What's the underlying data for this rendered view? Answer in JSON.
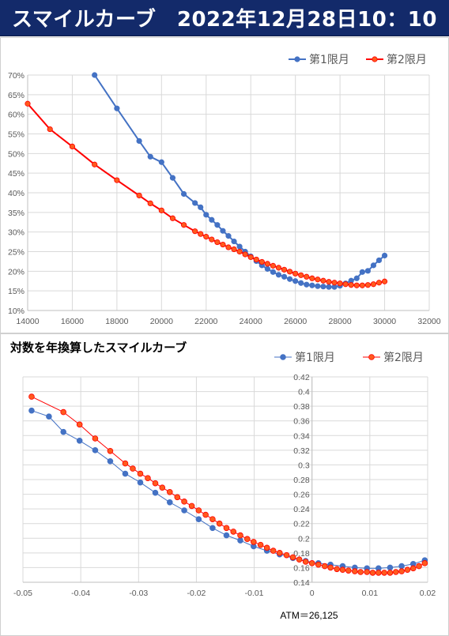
{
  "page": {
    "title": "スマイルカーブ　2022年12月28日10：10"
  },
  "colors": {
    "title_bg": "#132a6a",
    "series1": "#4472c4",
    "series2": "#ff0000",
    "series2_fill": "#ff5a1e",
    "grid": "#d9d9d9"
  },
  "chart_data": [
    {
      "type": "line",
      "title": "",
      "xlim": [
        14000,
        32000
      ],
      "ylim": [
        10,
        70
      ],
      "x_ticks": [
        14000,
        16000,
        18000,
        20000,
        22000,
        24000,
        26000,
        28000,
        30000,
        32000
      ],
      "x_tick_labels": [
        "14000",
        "16000",
        "18000",
        "20000",
        "22000",
        "24000",
        "26000",
        "28000",
        "30000",
        "32000"
      ],
      "y_ticks": [
        10,
        15,
        20,
        25,
        30,
        35,
        40,
        45,
        50,
        55,
        60,
        65,
        70
      ],
      "y_tick_labels": [
        "10%",
        "15%",
        "20%",
        "25%",
        "30%",
        "35%",
        "40%",
        "45%",
        "50%",
        "55%",
        "60%",
        "65%",
        "70%"
      ],
      "legend_position": "top-right",
      "grid": true,
      "series": [
        {
          "name": "第1限月",
          "x": [
            17000,
            18000,
            19000,
            19500,
            20000,
            20500,
            21000,
            21500,
            21750,
            22000,
            22250,
            22500,
            22750,
            23000,
            23250,
            23500,
            23750,
            24000,
            24250,
            24500,
            24750,
            25000,
            25250,
            25500,
            25750,
            26000,
            26250,
            26500,
            26750,
            27000,
            27250,
            27500,
            27750,
            28000,
            28250,
            28500,
            28750,
            29000,
            29250,
            29500,
            29750,
            30000
          ],
          "y": [
            70.0,
            61.5,
            53.2,
            49.2,
            47.8,
            43.8,
            39.7,
            37.4,
            36.3,
            34.4,
            33.1,
            31.8,
            30.3,
            29.0,
            27.6,
            26.3,
            25.0,
            23.8,
            22.6,
            21.5,
            20.6,
            19.8,
            19.1,
            18.6,
            18.0,
            17.5,
            17.0,
            16.6,
            16.4,
            16.2,
            16.1,
            16.0,
            16.0,
            16.3,
            16.9,
            17.6,
            18.2,
            19.8,
            20.1,
            21.5,
            22.8,
            24.0
          ]
        },
        {
          "name": "第2限月",
          "x": [
            14000,
            15000,
            16000,
            17000,
            18000,
            19000,
            19500,
            20000,
            20500,
            21000,
            21500,
            21750,
            22000,
            22250,
            22500,
            22750,
            23000,
            23250,
            23500,
            23750,
            24000,
            24250,
            24500,
            24750,
            25000,
            25250,
            25500,
            25750,
            26000,
            26250,
            26500,
            26750,
            27000,
            27250,
            27500,
            27750,
            28000,
            28250,
            28500,
            28750,
            29000,
            29250,
            29500,
            29750,
            30000
          ],
          "y": [
            62.7,
            56.2,
            51.8,
            47.2,
            43.2,
            39.3,
            37.3,
            35.5,
            33.5,
            31.8,
            30.2,
            29.5,
            28.8,
            28.1,
            27.4,
            26.8,
            26.1,
            25.6,
            25.0,
            24.3,
            23.6,
            23.0,
            22.4,
            21.9,
            21.4,
            20.9,
            20.4,
            19.9,
            19.4,
            19.0,
            18.6,
            18.2,
            17.9,
            17.6,
            17.3,
            17.1,
            16.9,
            16.7,
            16.5,
            16.4,
            16.4,
            16.5,
            16.7,
            17.1,
            17.4
          ]
        }
      ]
    },
    {
      "type": "line",
      "title": "対数を年換算したスマイルカーブ",
      "xlim": [
        -0.05,
        0.02
      ],
      "ylim": [
        0.14,
        0.42
      ],
      "x_ticks": [
        -0.05,
        -0.04,
        -0.03,
        -0.02,
        -0.01,
        0,
        0.01,
        0.02
      ],
      "x_tick_labels": [
        "-0.05",
        "-0.04",
        "-0.03",
        "-0.02",
        "-0.01",
        "0",
        "0.01",
        "0.02"
      ],
      "y_ticks": [
        0.14,
        0.16,
        0.18,
        0.2,
        0.22,
        0.24,
        0.26,
        0.28,
        0.3,
        0.32,
        0.34,
        0.36,
        0.38,
        0.4,
        0.42
      ],
      "y_tick_labels": [
        "0.14",
        "0.16",
        "0.18",
        "0.2",
        "0.22",
        "0.24",
        "0.26",
        "0.28",
        "0.3",
        "0.32",
        "0.34",
        "0.36",
        "0.38",
        "0.4",
        "0.42"
      ],
      "legend_position": "top-right",
      "grid": true,
      "annotation": "ATM＝26,125",
      "series": [
        {
          "name": "第1限月",
          "x": [
            -0.0485,
            -0.0455,
            -0.043,
            -0.0402,
            -0.0375,
            -0.0349,
            -0.0323,
            -0.0297,
            -0.0271,
            -0.0246,
            -0.0221,
            -0.0196,
            -0.0172,
            -0.0148,
            -0.0124,
            -0.0101,
            -0.0078,
            -0.0056,
            -0.0033,
            -0.0011,
            0.0011,
            0.0032,
            0.0053,
            0.0074,
            0.0095,
            0.0115,
            0.0135,
            0.0155,
            0.0175,
            0.0195
          ],
          "y": [
            0.374,
            0.366,
            0.345,
            0.333,
            0.32,
            0.305,
            0.288,
            0.276,
            0.262,
            0.249,
            0.238,
            0.226,
            0.214,
            0.204,
            0.197,
            0.189,
            0.183,
            0.178,
            0.173,
            0.169,
            0.166,
            0.164,
            0.162,
            0.16,
            0.159,
            0.159,
            0.16,
            0.162,
            0.165,
            0.17
          ]
        },
        {
          "name": "第2限月",
          "x": [
            -0.0485,
            -0.043,
            -0.0402,
            -0.0375,
            -0.0349,
            -0.0323,
            -0.031,
            -0.0297,
            -0.0284,
            -0.0271,
            -0.0259,
            -0.0246,
            -0.0233,
            -0.0221,
            -0.0208,
            -0.0196,
            -0.0184,
            -0.0172,
            -0.016,
            -0.0148,
            -0.0136,
            -0.0124,
            -0.0112,
            -0.0101,
            -0.0089,
            -0.0078,
            -0.0067,
            -0.0056,
            -0.0044,
            -0.0033,
            -0.0022,
            -0.0011,
            0,
            0.0011,
            0.0022,
            0.0032,
            0.0043,
            0.0053,
            0.0063,
            0.0074,
            0.0084,
            0.0095,
            0.0105,
            0.0115,
            0.0125,
            0.0135,
            0.0145,
            0.0155,
            0.0165,
            0.0175,
            0.0185,
            0.0195
          ],
          "y": [
            0.393,
            0.372,
            0.355,
            0.336,
            0.319,
            0.302,
            0.295,
            0.288,
            0.282,
            0.275,
            0.269,
            0.263,
            0.256,
            0.25,
            0.244,
            0.238,
            0.232,
            0.226,
            0.22,
            0.214,
            0.209,
            0.204,
            0.199,
            0.195,
            0.191,
            0.187,
            0.183,
            0.18,
            0.177,
            0.174,
            0.171,
            0.168,
            0.166,
            0.164,
            0.162,
            0.16,
            0.158,
            0.157,
            0.156,
            0.155,
            0.154,
            0.154,
            0.153,
            0.153,
            0.153,
            0.153,
            0.154,
            0.155,
            0.157,
            0.159,
            0.162,
            0.166
          ]
        }
      ]
    }
  ]
}
